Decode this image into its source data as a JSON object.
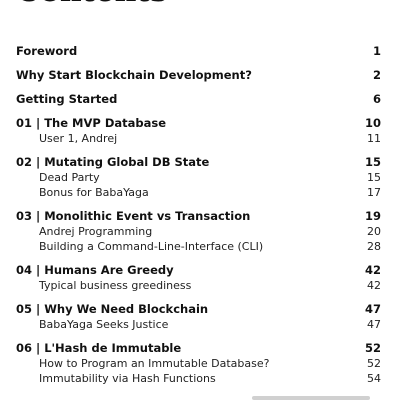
{
  "title": "Contents",
  "entries": [
    {
      "label": "Foreword",
      "page": "1"
    },
    {
      "label": "Why Start Blockchain Development?",
      "page": "2"
    },
    {
      "label": "Getting Started",
      "page": "6"
    },
    {
      "label": "01 | The MVP Database",
      "page": "10"
    },
    {
      "label": "User 1, Andrej",
      "page": "11"
    },
    {
      "label": "02 | Mutating Global DB State",
      "page": "15"
    },
    {
      "label": "Dead Party",
      "page": "15"
    },
    {
      "label": "Bonus for BabaYaga",
      "page": "17"
    },
    {
      "label": "03 | Monolithic Event vs Transaction",
      "page": "19"
    },
    {
      "label": "Andrej Programming",
      "page": "20"
    },
    {
      "label": "Building a Command-Line-Interface (CLI)",
      "page": "28"
    },
    {
      "label": "04 | Humans Are Greedy",
      "page": "42"
    },
    {
      "label": "Typical business greediness",
      "page": "42"
    },
    {
      "label": "05 | Why We Need Blockchain",
      "page": "47"
    },
    {
      "label": "BabaYaga Seeks Justice",
      "page": "47"
    },
    {
      "label": "06 | L'Hash de Immutable",
      "page": "52"
    },
    {
      "label": "How to Program an Immutable Database?",
      "page": "52"
    },
    {
      "label": "Immutability via Hash Functions",
      "page": "54"
    }
  ]
}
